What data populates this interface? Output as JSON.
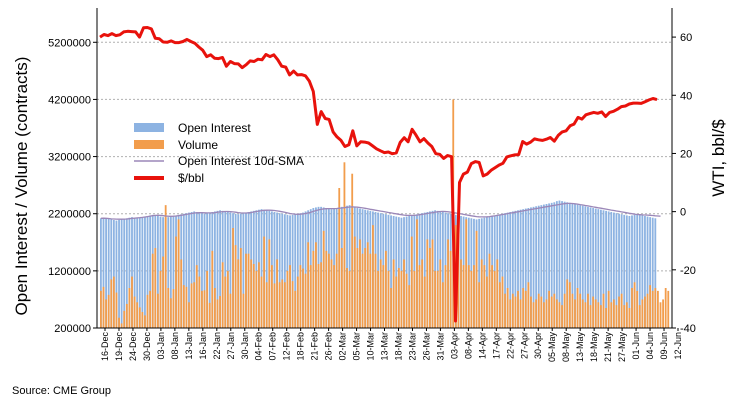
{
  "source": "Source: CME Group",
  "chart_data": {
    "type": "bar",
    "ylabel_left": "Open Interest / Volume (contracts)",
    "ylabel_right": "WTI, bbl/$",
    "ylim_left": [
      200000,
      5800000
    ],
    "yticks_left": [
      "200000",
      "1200000",
      "2200000",
      "3200000",
      "4200000",
      "5200000"
    ],
    "ylim_right": [
      -40,
      70
    ],
    "yticks_right": [
      "-40",
      "-20",
      "0",
      "20",
      "40",
      "60"
    ],
    "xticks": [
      "16-Dec",
      "19-Dec",
      "24-Dec",
      "30-Dec",
      "03-Jan",
      "08-Jan",
      "13-Jan",
      "16-Jan",
      "22-Jan",
      "27-Jan",
      "30-Jan",
      "04-Feb",
      "07-Feb",
      "12-Feb",
      "18-Feb",
      "21-Feb",
      "26-Feb",
      "02-Mar",
      "05-Mar",
      "10-Mar",
      "13-Mar",
      "18-Mar",
      "23-Mar",
      "26-Mar",
      "31-Mar",
      "03-Apr",
      "08-Apr",
      "14-Apr",
      "17-Apr",
      "22-Apr",
      "27-Apr",
      "30-Apr",
      "05-May",
      "08-May",
      "13-May",
      "18-May",
      "21-May",
      "27-May",
      "01-Jun",
      "04-Jun",
      "09-Jun",
      "12-Jun"
    ],
    "grid": true,
    "legend_position": "center-left",
    "colors": {
      "open_interest": "#8db3e2",
      "volume": "#f29d4c",
      "sma": "#9b87b8",
      "price": "#e8120c",
      "grid": "#b0b0b0"
    },
    "series": [
      {
        "name": "Open Interest",
        "axis": "left",
        "type": "bar",
        "values": [
          2120000,
          2130000,
          2120000,
          2110000,
          2100000,
          2090000,
          2080000,
          2090000,
          2100000,
          2110000,
          2120000,
          2130000,
          2140000,
          2130000,
          2120000,
          2130000,
          2140000,
          2150000,
          2160000,
          2170000,
          2180000,
          2170000,
          2160000,
          2150000,
          2140000,
          2130000,
          2140000,
          2150000,
          2160000,
          2170000,
          2180000,
          2190000,
          2200000,
          2210000,
          2220000,
          2230000,
          2240000,
          2230000,
          2220000,
          2210000,
          2200000,
          2210000,
          2220000,
          2230000,
          2240000,
          2250000,
          2260000,
          2250000,
          2240000,
          2230000,
          2220000,
          2210000,
          2200000,
          2190000,
          2200000,
          2210000,
          2220000,
          2230000,
          2240000,
          2250000,
          2260000,
          2270000,
          2280000,
          2270000,
          2260000,
          2250000,
          2240000,
          2230000,
          2220000,
          2210000,
          2200000,
          2190000,
          2180000,
          2170000,
          2180000,
          2190000,
          2200000,
          2210000,
          2220000,
          2240000,
          2260000,
          2280000,
          2300000,
          2310000,
          2320000,
          2320000,
          2310000,
          2300000,
          2290000,
          2280000,
          2290000,
          2300000,
          2310000,
          2320000,
          2330000,
          2340000,
          2350000,
          2330000,
          2310000,
          2300000,
          2290000,
          2280000,
          2270000,
          2260000,
          2250000,
          2240000,
          2230000,
          2220000,
          2210000,
          2200000,
          2190000,
          2180000,
          2170000,
          2160000,
          2150000,
          2140000,
          2130000,
          2140000,
          2150000,
          2160000,
          2170000,
          2180000,
          2190000,
          2200000,
          2210000,
          2220000,
          2230000,
          2240000,
          2250000,
          2260000,
          2250000,
          2240000,
          2230000,
          2220000,
          2210000,
          2200000,
          2190000,
          2180000,
          2170000,
          2160000,
          2150000,
          2140000,
          2130000,
          2120000,
          2110000,
          2100000,
          2110000,
          2120000,
          2130000,
          2140000,
          2150000,
          2160000,
          2170000,
          2180000,
          2190000,
          2200000,
          2210000,
          2220000,
          2230000,
          2240000,
          2250000,
          2260000,
          2270000,
          2280000,
          2290000,
          2300000,
          2310000,
          2320000,
          2330000,
          2340000,
          2350000,
          2360000,
          2370000,
          2380000,
          2390000,
          2400000,
          2420000,
          2430000,
          2420000,
          2410000,
          2400000,
          2390000,
          2380000,
          2370000,
          2360000,
          2350000,
          2340000,
          2330000,
          2320000,
          2310000,
          2300000,
          2290000,
          2280000,
          2270000,
          2260000,
          2250000,
          2240000,
          2230000,
          2220000,
          2210000,
          2200000,
          2190000,
          2180000,
          2170000,
          2160000,
          2170000,
          2180000,
          2190000,
          2180000,
          2170000,
          2160000,
          2150000,
          2140000,
          2130000,
          2120000
        ]
      },
      {
        "name": "Volume",
        "axis": "left",
        "type": "bar",
        "values": [
          850000,
          920000,
          700000,
          780000,
          1050000,
          1100000,
          820000,
          380000,
          280000,
          500000,
          620000,
          900000,
          1100000,
          750000,
          650000,
          560000,
          480000,
          420000,
          780000,
          850000,
          1500000,
          1600000,
          800000,
          1200000,
          1450000,
          2350000,
          900000,
          720000,
          880000,
          1800000,
          2100000,
          1400000,
          950000,
          920000,
          650000,
          980000,
          1000000,
          1300000,
          1100000,
          850000,
          860000,
          1200000,
          640000,
          1550000,
          900000,
          700000,
          760000,
          1350000,
          1100000,
          1200000,
          800000,
          1950000,
          1650000,
          1400000,
          1600000,
          800000,
          1500000,
          1500000,
          1400000,
          1320000,
          1200000,
          1350000,
          1100000,
          1800000,
          1000000,
          1750000,
          1300000,
          980000,
          1400000,
          1000000,
          1050000,
          1000000,
          1200000,
          1300000,
          1020000,
          850000,
          1100000,
          1300000,
          1240000,
          1150000,
          1700000,
          1300000,
          1550000,
          1700000,
          1320000,
          1350000,
          1900000,
          1550000,
          1500000,
          1400000,
          1300000,
          1500000,
          2650000,
          1600000,
          3100000,
          1250000,
          1200000,
          2900000,
          1800000,
          1600000,
          1750000,
          1500000,
          1600000,
          1700000,
          1500000,
          2000000,
          1500000,
          1200000,
          1400000,
          1300000,
          1550000,
          1200000,
          900000,
          1400000,
          1100000,
          1250000,
          1200000,
          1400000,
          1150000,
          950000,
          1800000,
          1200000,
          2100000,
          1300000,
          1400000,
          1100000,
          1750000,
          1600000,
          1750000,
          1200000,
          1200000,
          1400000,
          1000000,
          1300000,
          1750000,
          1550000,
          4200000,
          2000000,
          2450000,
          1400000,
          1300000,
          2100000,
          1300000,
          1200000,
          1300000,
          1900000,
          1000000,
          1400000,
          1300000,
          1100000,
          1500000,
          1300000,
          1200000,
          1400000,
          1000000,
          1100000,
          800000,
          900000,
          700000,
          800000,
          750000,
          850000,
          700000,
          900000,
          850000,
          1000000,
          750000,
          650000,
          700000,
          800000,
          750000,
          650000,
          700000,
          850000,
          750000,
          800000,
          700000,
          650000,
          600000,
          800000,
          1050000,
          1000000,
          800000,
          700000,
          900000,
          800000,
          700000,
          650000,
          800000,
          600000,
          750000,
          700000,
          650000,
          600000,
          800000,
          550000,
          850000,
          650000,
          700000,
          600000,
          750000,
          800000,
          600000,
          650000,
          550000,
          900000,
          1000000,
          850000,
          600000,
          700000,
          750000,
          800000,
          950000,
          850000,
          900000,
          850000,
          650000,
          700000,
          900000,
          850000
        ]
      },
      {
        "name": "Open Interest 10d-SMA",
        "axis": "left",
        "type": "line",
        "values": [
          2120000,
          2122000,
          2120000,
          2116000,
          2110000,
          2108000,
          2105000,
          2104000,
          2104000,
          2106000,
          2108000,
          2112000,
          2118000,
          2122000,
          2126000,
          2130000,
          2136000,
          2142000,
          2150000,
          2158000,
          2166000,
          2170000,
          2172000,
          2170000,
          2166000,
          2160000,
          2156000,
          2154000,
          2156000,
          2160000,
          2166000,
          2172000,
          2180000,
          2188000,
          2196000,
          2204000,
          2212000,
          2216000,
          2218000,
          2218000,
          2216000,
          2214000,
          2214000,
          2216000,
          2220000,
          2226000,
          2232000,
          2236000,
          2238000,
          2238000,
          2236000,
          2232000,
          2226000,
          2220000,
          2214000,
          2212000,
          2212000,
          2216000,
          2222000,
          2230000,
          2238000,
          2246000,
          2254000,
          2260000,
          2262000,
          2262000,
          2260000,
          2256000,
          2250000,
          2242000,
          2234000,
          2224000,
          2214000,
          2204000,
          2196000,
          2192000,
          2190000,
          2192000,
          2196000,
          2204000,
          2214000,
          2226000,
          2240000,
          2254000,
          2266000,
          2276000,
          2284000,
          2288000,
          2290000,
          2290000,
          2290000,
          2292000,
          2296000,
          2300000,
          2306000,
          2312000,
          2318000,
          2320000,
          2318000,
          2314000,
          2308000,
          2302000,
          2294000,
          2286000,
          2278000,
          2270000,
          2262000,
          2254000,
          2246000,
          2238000,
          2230000,
          2222000,
          2214000,
          2206000,
          2198000,
          2190000,
          2182000,
          2176000,
          2172000,
          2170000,
          2170000,
          2172000,
          2176000,
          2182000,
          2188000,
          2196000,
          2204000,
          2212000,
          2220000,
          2228000,
          2234000,
          2238000,
          2240000,
          2238000,
          2234000,
          2228000,
          2220000,
          2212000,
          2204000,
          2196000,
          2188000,
          2180000,
          2172000,
          2164000,
          2156000,
          2150000,
          2146000,
          2144000,
          2144000,
          2146000,
          2150000,
          2156000,
          2162000,
          2170000,
          2178000,
          2186000,
          2194000,
          2202000,
          2210000,
          2218000,
          2226000,
          2234000,
          2242000,
          2250000,
          2258000,
          2266000,
          2274000,
          2282000,
          2290000,
          2298000,
          2306000,
          2314000,
          2322000,
          2330000,
          2338000,
          2346000,
          2354000,
          2362000,
          2370000,
          2376000,
          2380000,
          2380000,
          2378000,
          2374000,
          2368000,
          2360000,
          2352000,
          2344000,
          2336000,
          2328000,
          2320000,
          2312000,
          2304000,
          2296000,
          2288000,
          2280000,
          2272000,
          2264000,
          2256000,
          2248000,
          2240000,
          2232000,
          2224000,
          2216000,
          2208000,
          2200000,
          2192000,
          2186000,
          2182000,
          2180000,
          2178000,
          2176000,
          2172000,
          2168000,
          2164000,
          2160000,
          2156000
        ]
      },
      {
        "name": "$/bbl",
        "axis": "right",
        "type": "line",
        "values": [
          60.0,
          60.9,
          60.5,
          61.2,
          60.5,
          60.8,
          61.8,
          62.0,
          61.9,
          61.8,
          60.0,
          63.2,
          63.3,
          62.8,
          59.6,
          59.4,
          58.3,
          58.2,
          58.7,
          58.1,
          58.1,
          58.5,
          59.2,
          58.5,
          57.9,
          56.6,
          55.5,
          53.3,
          53.9,
          52.7,
          52.6,
          53.0,
          50.0,
          51.6,
          50.9,
          50.8,
          49.5,
          50.5,
          51.8,
          51.6,
          52.4,
          52.2,
          54.0,
          53.3,
          53.9,
          52.2,
          50.0,
          49.7,
          47.0,
          48.3,
          47.0,
          47.1,
          46.7,
          44.8,
          41.3,
          30.0,
          34.4,
          32.0,
          31.7,
          27.4,
          25.7,
          24.5,
          22.4,
          23.0,
          27.8,
          22.6,
          24.0,
          23.9,
          23.6,
          22.6,
          21.6,
          20.9,
          20.3,
          20.5,
          19.9,
          20.2,
          23.8,
          25.4,
          24.0,
          28.3,
          26.3,
          24.0,
          25.1,
          23.6,
          22.4,
          19.9,
          19.7,
          18.3,
          19.3,
          18.9,
          -37.6,
          10.0,
          12.9,
          13.6,
          16.5,
          17.2,
          16.9,
          12.3,
          12.9,
          14.2,
          15.1,
          16.0,
          16.6,
          18.8,
          19.2,
          19.5,
          19.6,
          24.1,
          23.2,
          23.9,
          25.0,
          24.7,
          24.5,
          24.9,
          25.5,
          24.2,
          26.2,
          27.4,
          27.8,
          29.5,
          30.1,
          32.4,
          31.8,
          33.3,
          33.7,
          34.1,
          33.8,
          34.3,
          32.7,
          34.1,
          34.5,
          35.2,
          36.1,
          36.3,
          37.0,
          37.3,
          37.3,
          37.2,
          37.8,
          38.4,
          38.9,
          38.5
        ]
      }
    ],
    "legend": [
      "Open Interest",
      "Volume",
      "Open Interest 10d-SMA",
      "$/bbl"
    ]
  }
}
